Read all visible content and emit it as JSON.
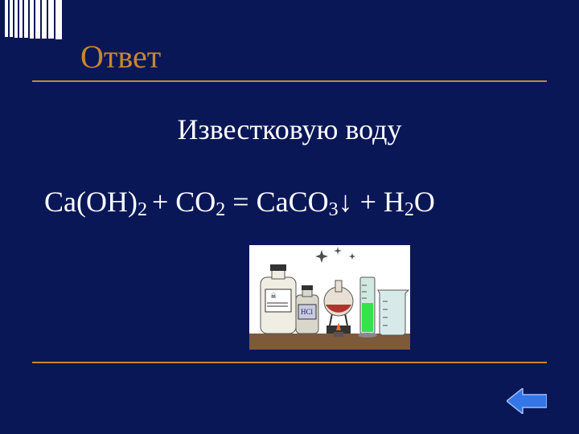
{
  "background_color": "#0a1757",
  "text_color": "#ffffff",
  "accent_color": "#c7872c",
  "line_color": "#c7872c",
  "arrow_fill": "#3476e8",
  "arrow_stroke": "#9fbef5",
  "deco_bar_color": "#ffffff",
  "title": "Ответ",
  "subtitle": "Известковую воду",
  "equation": {
    "parts": [
      {
        "t": "Ca(OH)",
        "sub": false
      },
      {
        "t": "2 ",
        "sub": true
      },
      {
        "t": "+ CO",
        "sub": false
      },
      {
        "t": "2",
        "sub": true
      },
      {
        "t": " = CaCO",
        "sub": false
      },
      {
        "t": "3",
        "sub": true
      },
      {
        "t": "↓ + H",
        "sub": false
      },
      {
        "t": "2",
        "sub": true
      },
      {
        "t": "O",
        "sub": false
      }
    ]
  },
  "illustration": {
    "bg": "#ffffff",
    "table": "#7c5a3a",
    "bottle1_body": "#f0ede2",
    "bottle1_label": "#ffffff",
    "bottle2_body": "#d9d6cc",
    "bottle2_label": "#c9cce0",
    "bottle2_label_text": "HCl",
    "flask_liquid": "#b0342d",
    "burner": "#555555",
    "flame": "#ff6a2a",
    "cylinder_body": "#d0e8e0",
    "cylinder_liquid": "#35e24a",
    "beaker_body": "#d8e9ea",
    "sparkle": "#4c4e52"
  }
}
